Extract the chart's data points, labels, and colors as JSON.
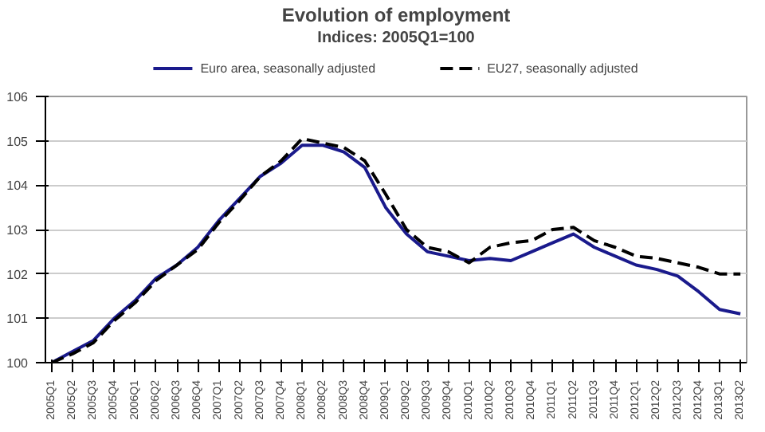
{
  "chart_data": {
    "type": "line",
    "title": "Evolution of employment",
    "subtitle": "Indices: 2005Q1=100",
    "categories": [
      "2005Q1",
      "2005Q2",
      "2005Q3",
      "2005Q4",
      "2006Q1",
      "2006Q2",
      "2006Q3",
      "2006Q4",
      "2007Q1",
      "2007Q2",
      "2007Q3",
      "2007Q4",
      "2008Q1",
      "2008Q2",
      "2008Q3",
      "2008Q4",
      "2009Q1",
      "2009Q2",
      "2009Q3",
      "2009Q4",
      "2010Q1",
      "2010Q2",
      "2010Q3",
      "2010Q4",
      "2011Q1",
      "2011Q2",
      "2011Q3",
      "2011Q4",
      "2012Q1",
      "2012Q2",
      "2012Q3",
      "2012Q4",
      "2013Q1",
      "2013Q2"
    ],
    "series": [
      {
        "name": "Euro area, seasonally adjusted",
        "color": "#1a1a8c",
        "line_style": "solid",
        "values": [
          100,
          100.25,
          100.5,
          101.0,
          101.4,
          101.9,
          102.2,
          102.6,
          103.2,
          103.7,
          104.2,
          104.5,
          104.9,
          104.9,
          104.75,
          104.4,
          103.5,
          102.9,
          102.5,
          102.4,
          102.3,
          102.35,
          102.3,
          102.5,
          102.7,
          102.9,
          102.6,
          102.4,
          102.2,
          102.1,
          101.95,
          101.6,
          101.2,
          101.1
        ]
      },
      {
        "name": "EU27, seasonally adjusted",
        "color": "#000000",
        "line_style": "dashed",
        "values": [
          100,
          100.2,
          100.45,
          100.95,
          101.35,
          101.85,
          102.2,
          102.55,
          103.15,
          103.65,
          104.2,
          104.55,
          105.05,
          104.95,
          104.85,
          104.55,
          103.8,
          103.0,
          102.6,
          102.5,
          102.25,
          102.6,
          102.7,
          102.75,
          103.0,
          103.05,
          102.75,
          102.6,
          102.4,
          102.35,
          102.25,
          102.15,
          102.0,
          102.0
        ]
      }
    ],
    "ylim": [
      100,
      106
    ],
    "yticks": [
      100,
      101,
      102,
      103,
      104,
      105,
      106
    ],
    "grid": "y",
    "legend": "top",
    "marker": "none"
  }
}
